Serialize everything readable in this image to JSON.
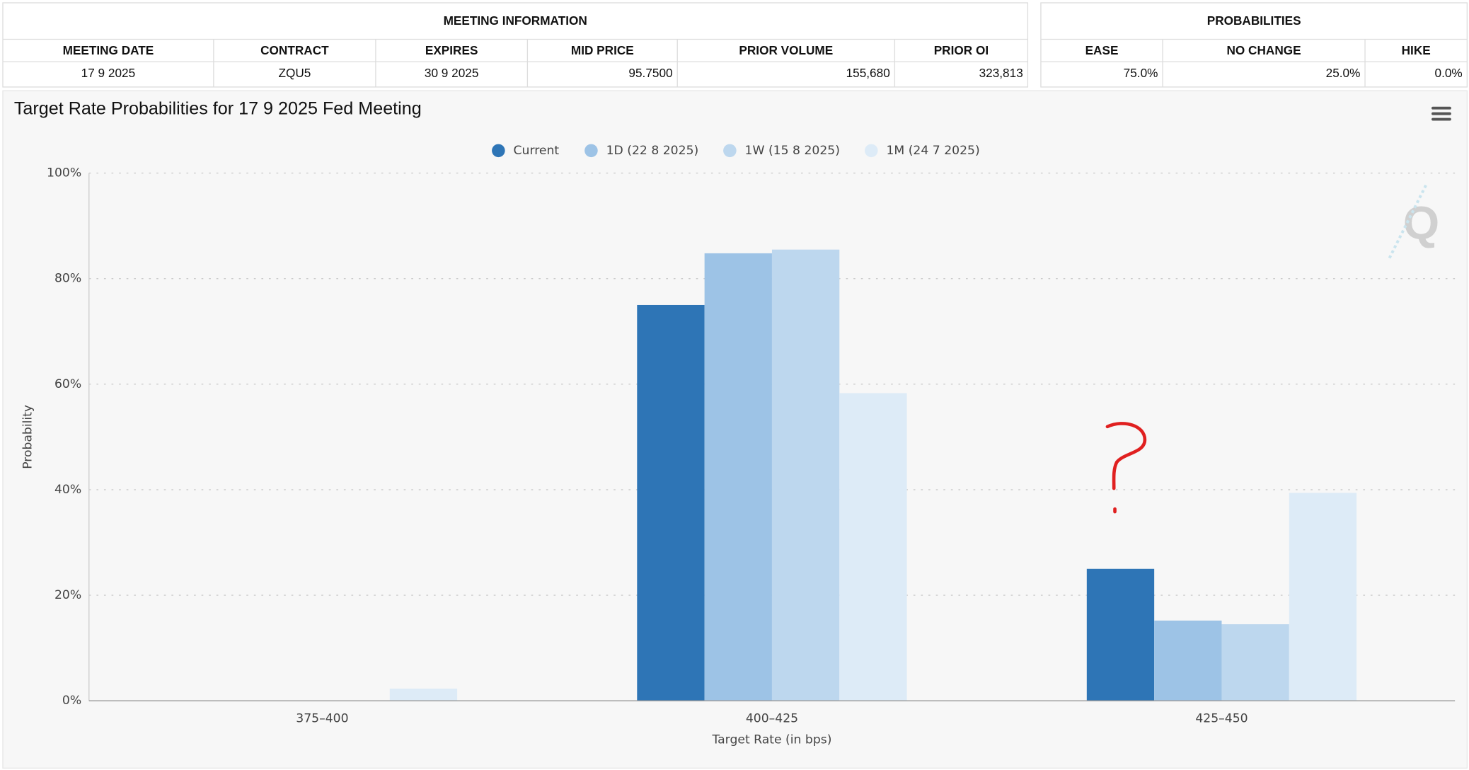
{
  "meeting_info": {
    "title": "MEETING INFORMATION",
    "columns": [
      "MEETING DATE",
      "CONTRACT",
      "EXPIRES",
      "MID PRICE",
      "PRIOR VOLUME",
      "PRIOR OI"
    ],
    "row": [
      "17 9 2025",
      "ZQU5",
      "30 9 2025",
      "95.7500",
      "155,680",
      "323,813"
    ]
  },
  "probabilities": {
    "title": "PROBABILITIES",
    "columns": [
      "EASE",
      "NO CHANGE",
      "HIKE"
    ],
    "row": [
      "75.0%",
      "25.0%",
      "0.0%"
    ]
  },
  "chart_data": {
    "type": "bar",
    "title": "Target Rate Probabilities for 17 9 2025 Fed Meeting",
    "x_label": "Target Rate (in bps)",
    "y_label": "Probability",
    "categories": [
      "375–400",
      "400–425",
      "425–450"
    ],
    "series": [
      {
        "name": "Current",
        "color": "#2e75b6",
        "values": [
          0,
          75.0,
          25.0
        ]
      },
      {
        "name": "1D (22 8 2025)",
        "color": "#9dc3e6",
        "values": [
          0,
          84.8,
          15.2
        ]
      },
      {
        "name": "1W (15 8 2025)",
        "color": "#bdd7ee",
        "values": [
          0,
          85.5,
          14.5
        ]
      },
      {
        "name": "1M (24 7 2025)",
        "color": "#ddebf7",
        "values": [
          2.3,
          58.3,
          39.4
        ]
      }
    ],
    "ylim": [
      0,
      100
    ],
    "yticks": [
      {
        "value": 0,
        "label": "0%"
      },
      {
        "value": 20,
        "label": "20%"
      },
      {
        "value": 40,
        "label": "40%"
      },
      {
        "value": 60,
        "label": "60%"
      },
      {
        "value": 80,
        "label": "80%"
      },
      {
        "value": 100,
        "label": "100%"
      }
    ],
    "grid": true,
    "legend": "top"
  }
}
